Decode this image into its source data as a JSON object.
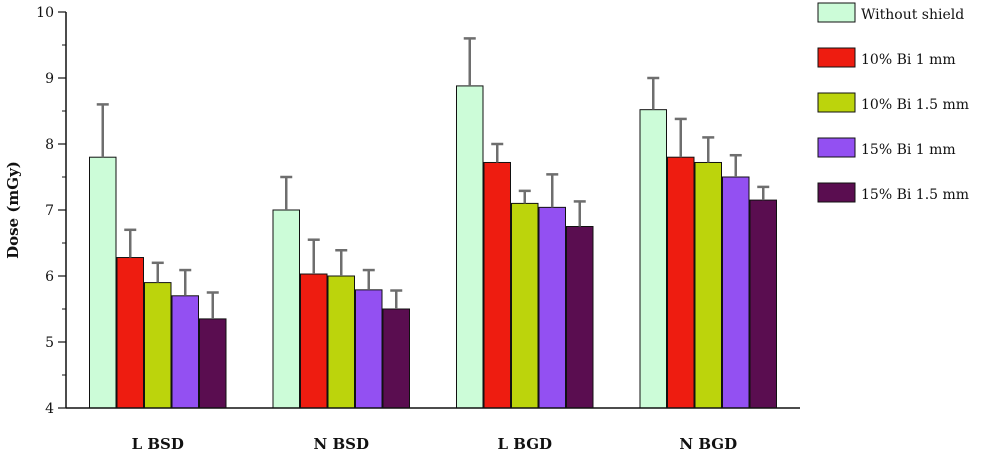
{
  "chart_data": {
    "type": "bar",
    "title": "",
    "xlabel": "",
    "ylabel": "Dose (mGy)",
    "ylim": [
      4,
      10
    ],
    "yticks": [
      4,
      5,
      6,
      7,
      8,
      9,
      10
    ],
    "categories": [
      "L BSD",
      "N BSD",
      "L BGD",
      "N BGD"
    ],
    "legend_position": "right",
    "series": [
      {
        "name": "Without shield",
        "color": "#ccfcd8",
        "values": [
          7.8,
          7.0,
          8.88,
          8.52
        ],
        "errors": [
          0.8,
          0.5,
          0.72,
          0.48
        ]
      },
      {
        "name": "10% Bi 1 mm",
        "color": "#ee1c10",
        "values": [
          6.28,
          6.03,
          7.72,
          7.8
        ],
        "errors": [
          0.42,
          0.52,
          0.28,
          0.58
        ]
      },
      {
        "name": "10% Bi 1.5 mm",
        "color": "#bcd40c",
        "values": [
          5.9,
          6.0,
          7.1,
          7.72
        ],
        "errors": [
          0.3,
          0.39,
          0.19,
          0.38
        ]
      },
      {
        "name": "15% Bi 1 mm",
        "color": "#9350f2",
        "values": [
          5.7,
          5.79,
          7.04,
          7.5
        ],
        "errors": [
          0.39,
          0.3,
          0.5,
          0.33
        ]
      },
      {
        "name": "15% Bi 1.5 mm",
        "color": "#5a0d50",
        "values": [
          5.35,
          5.5,
          6.75,
          7.15
        ],
        "errors": [
          0.4,
          0.28,
          0.38,
          0.2
        ]
      }
    ]
  }
}
